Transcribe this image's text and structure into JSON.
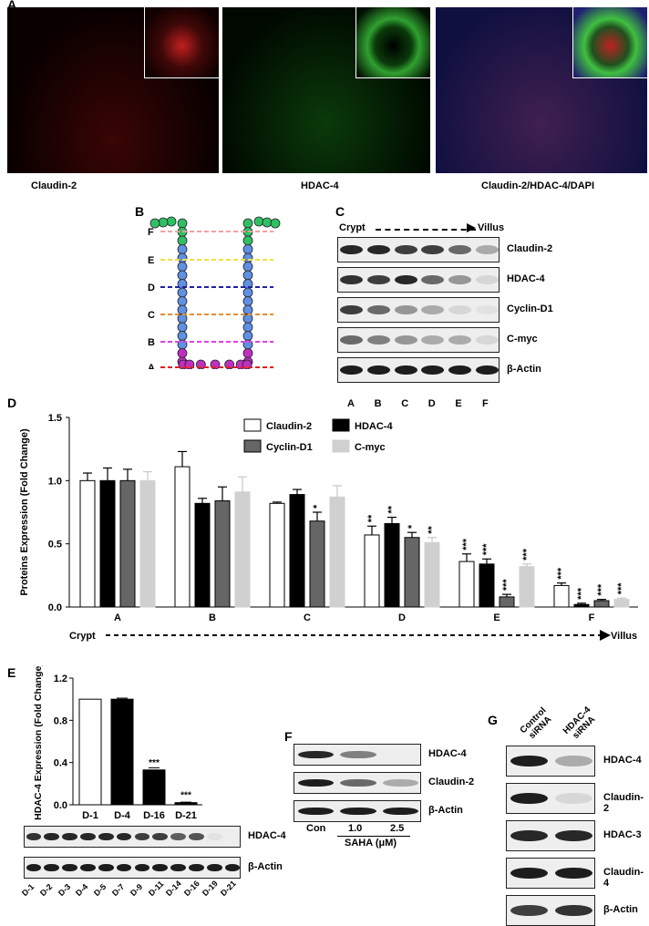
{
  "panels": {
    "A": "A",
    "B": "B",
    "C": "C",
    "D": "D",
    "E": "E",
    "F": "F",
    "G": "G"
  },
  "panel_a": {
    "captions": [
      "Claudin-2",
      "HDAC-4",
      "Claudin-2/HDAC-4/DAPI"
    ]
  },
  "panel_b": {
    "levels": [
      "F",
      "E",
      "D",
      "C",
      "B",
      "A"
    ],
    "colors": [
      "#f4a0a0",
      "#f0e040",
      "#2020a0",
      "#e09030",
      "#e040e0",
      "#e02020"
    ]
  },
  "panel_c": {
    "axis_start": "Crypt",
    "axis_end": "Villus",
    "blots": [
      "Claudin-2",
      "HDAC-4",
      "Cyclin-D1",
      "C-myc",
      "β-Actin"
    ],
    "lanes": [
      "A",
      "B",
      "C",
      "D",
      "E",
      "F"
    ],
    "intensities": [
      [
        0.9,
        0.9,
        0.8,
        0.8,
        0.6,
        0.3
      ],
      [
        0.85,
        0.8,
        0.9,
        0.6,
        0.4,
        0.1
      ],
      [
        0.8,
        0.6,
        0.4,
        0.3,
        0.1,
        0.05
      ],
      [
        0.6,
        0.5,
        0.4,
        0.3,
        0.3,
        0.1
      ],
      [
        0.95,
        0.95,
        0.95,
        0.95,
        0.95,
        0.95
      ]
    ]
  },
  "chart_data": [
    {
      "type": "bar",
      "panel": "D",
      "ylabel": "Proteins Expression (Fold Change)",
      "ylim": [
        0,
        1.5
      ],
      "yticks": [
        "0.0",
        "0.5",
        "1.0",
        "1.5"
      ],
      "categories": [
        "A",
        "B",
        "C",
        "D",
        "E",
        "F"
      ],
      "x_axis_start": "Crypt",
      "x_axis_end": "Villus",
      "legend": "top-center",
      "series": [
        {
          "name": "Claudin-2",
          "color": "#ffffff",
          "values": [
            1.0,
            1.11,
            0.82,
            0.57,
            0.36,
            0.17
          ],
          "errors": [
            0.06,
            0.12,
            0.01,
            0.07,
            0.06,
            0.02
          ],
          "stars": [
            "",
            "",
            "",
            "**",
            "***",
            "***"
          ]
        },
        {
          "name": "HDAC-4",
          "color": "#000000",
          "values": [
            1.0,
            0.82,
            0.89,
            0.66,
            0.34,
            0.02
          ],
          "errors": [
            0.1,
            0.04,
            0.04,
            0.05,
            0.04,
            0.01
          ],
          "stars": [
            "",
            "",
            "",
            "**",
            "***",
            "***"
          ]
        },
        {
          "name": "Cyclin-D1",
          "color": "#666666",
          "values": [
            1.0,
            0.84,
            0.68,
            0.55,
            0.08,
            0.05
          ],
          "errors": [
            0.09,
            0.11,
            0.07,
            0.04,
            0.02,
            0.01
          ],
          "stars": [
            "",
            "",
            "*",
            "*",
            "***",
            "***"
          ]
        },
        {
          "name": "C-myc",
          "color": "#d0d0d0",
          "values": [
            1.0,
            0.91,
            0.87,
            0.51,
            0.32,
            0.06
          ],
          "errors": [
            0.07,
            0.12,
            0.09,
            0.04,
            0.02,
            0.01
          ],
          "stars": [
            "",
            "",
            "",
            "**",
            "***",
            "***"
          ]
        }
      ]
    },
    {
      "type": "bar",
      "panel": "E",
      "ylabel": "HDAC-4 Expression (Fold Change)",
      "ylim": [
        0,
        1.2
      ],
      "yticks": [
        "0.0",
        "0.4",
        "0.8",
        "1.2"
      ],
      "categories": [
        "D-1",
        "D-4",
        "D-16",
        "D-21"
      ],
      "values": [
        1.0,
        1.0,
        0.33,
        0.02
      ],
      "errors": [
        0,
        0.01,
        0.02,
        0.005
      ],
      "colors": [
        "#ffffff",
        "#000000",
        "#000000",
        "#000000"
      ],
      "stars": [
        "",
        "",
        "***",
        "***"
      ]
    }
  ],
  "panel_e_blot": {
    "blots": [
      "HDAC-4",
      "β-Actin"
    ],
    "lanes": [
      "D-1",
      "D-2",
      "D-3",
      "D-4",
      "D-5",
      "D-7",
      "D-9",
      "D-11",
      "D-14",
      "D-16",
      "D-19",
      "D-21"
    ],
    "intensities": [
      [
        0.85,
        0.9,
        0.9,
        0.9,
        0.9,
        0.9,
        0.8,
        0.8,
        0.65,
        0.7,
        0.05,
        0
      ],
      [
        0.95,
        0.95,
        0.95,
        0.95,
        0.95,
        0.95,
        0.95,
        0.95,
        0.95,
        0.95,
        0.95,
        0.95
      ]
    ]
  },
  "panel_f": {
    "blots": [
      "HDAC-4",
      "Claudin-2",
      "β-Actin"
    ],
    "lanes": [
      "Con",
      "1.0",
      "2.5"
    ],
    "xlabel": "SAHA (μM)",
    "intensities": [
      [
        0.9,
        0.5,
        0
      ],
      [
        0.95,
        0.6,
        0.3
      ],
      [
        0.95,
        0.95,
        0.95
      ]
    ]
  },
  "panel_g": {
    "lanes": [
      "Control siRNA",
      "HDAC-4 siRNA"
    ],
    "blots": [
      "HDAC-4",
      "Claudin-2",
      "HDAC-3",
      "Claudin-4",
      "β-Actin"
    ],
    "intensities": [
      [
        0.95,
        0.3
      ],
      [
        0.95,
        0.1
      ],
      [
        0.9,
        0.9
      ],
      [
        0.95,
        0.95
      ],
      [
        0.8,
        0.85
      ]
    ]
  }
}
